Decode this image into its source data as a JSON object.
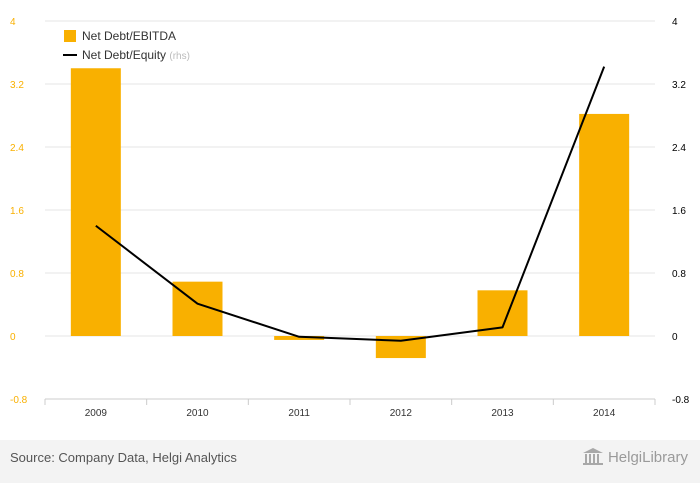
{
  "chart_data": {
    "type": "bar",
    "categories": [
      "2009",
      "2010",
      "2011",
      "2012",
      "2013",
      "2014"
    ],
    "series": [
      {
        "name": "Net Debt/EBITDA",
        "type": "bar",
        "axis": "left",
        "color": "#f9b000",
        "values": [
          3.4,
          0.69,
          -0.05,
          -0.28,
          0.58,
          2.82
        ]
      },
      {
        "name": "Net Debt/Equity",
        "type": "line",
        "axis": "right",
        "color": "#000000",
        "values": [
          1.4,
          0.41,
          -0.01,
          -0.06,
          0.11,
          3.42
        ]
      }
    ],
    "legend_rhs_note": "(rhs)",
    "y_left": {
      "ticks": [
        "4",
        "3.2",
        "2.4",
        "1.6",
        "0.8",
        "0",
        "-0.8"
      ],
      "ylim": [
        -0.8,
        4
      ],
      "tick_color": "#f9b000"
    },
    "y_right": {
      "ticks": [
        "4",
        "3.2",
        "2.4",
        "1.6",
        "0.8",
        "0",
        "-0.8"
      ],
      "ylim": [
        -0.8,
        4
      ],
      "tick_color": "#000000"
    },
    "grid": true,
    "legend_position": "top-left"
  },
  "footer": {
    "source": "Source: Company Data, Helgi Analytics",
    "logo_text": "HelgiLibrary"
  }
}
